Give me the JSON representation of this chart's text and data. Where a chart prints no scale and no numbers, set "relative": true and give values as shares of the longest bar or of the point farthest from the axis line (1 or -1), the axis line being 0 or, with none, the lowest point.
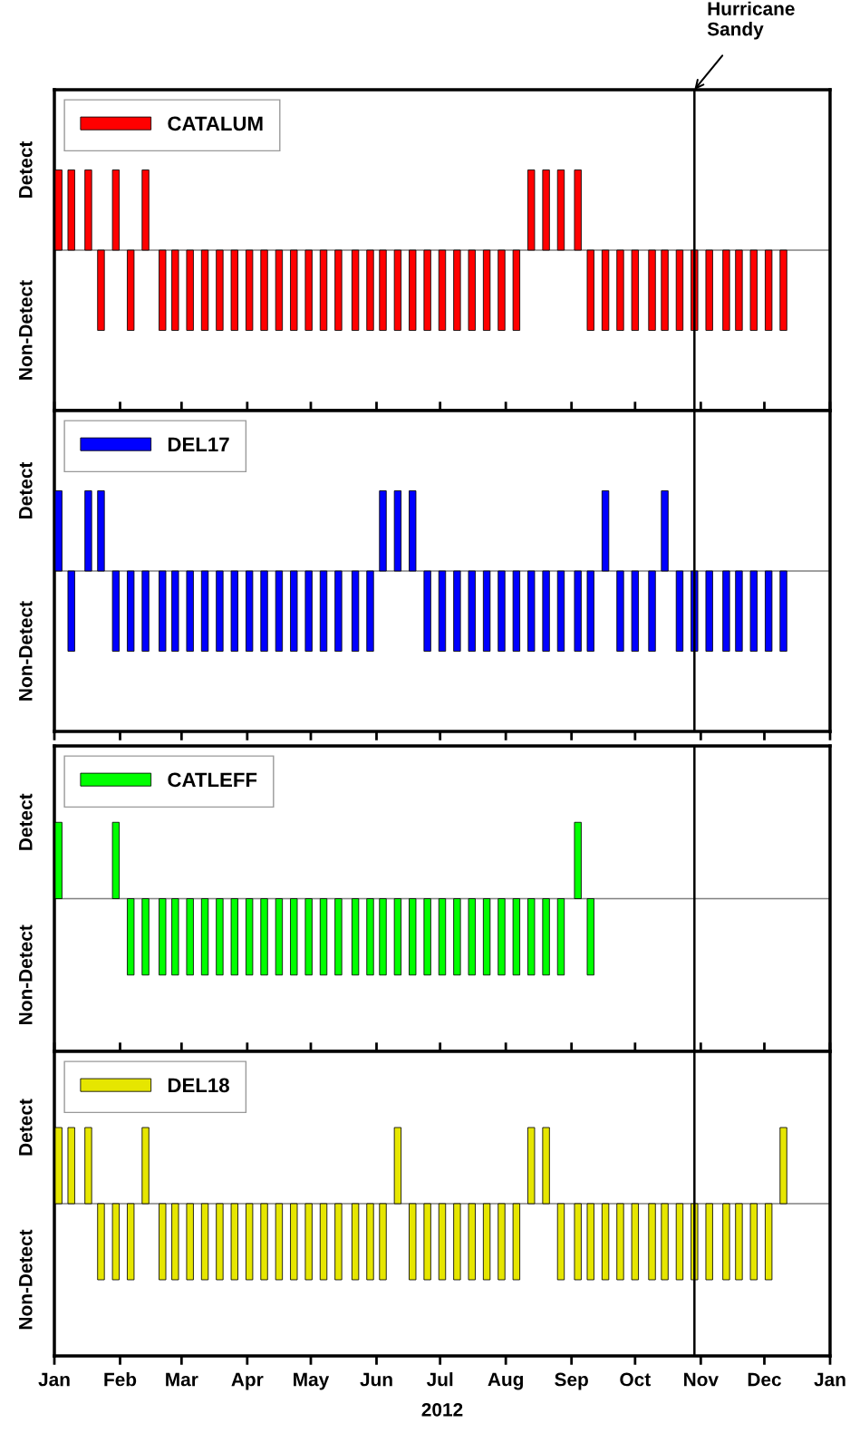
{
  "chart_data": [
    {
      "type": "bar",
      "x": [
        "2012-01-03",
        "2012-01-09",
        "2012-01-17",
        "2012-01-23",
        "2012-01-30",
        "2012-02-06",
        "2012-02-13",
        "2012-02-21",
        "2012-02-27",
        "2012-03-05",
        "2012-03-12",
        "2012-03-19",
        "2012-03-26",
        "2012-04-02",
        "2012-04-09",
        "2012-04-16",
        "2012-04-23",
        "2012-04-30",
        "2012-05-07",
        "2012-05-14",
        "2012-05-22",
        "2012-05-29",
        "2012-06-04",
        "2012-06-11",
        "2012-06-18",
        "2012-06-25",
        "2012-07-02",
        "2012-07-09",
        "2012-07-16",
        "2012-07-23",
        "2012-07-30",
        "2012-08-06",
        "2012-08-13",
        "2012-08-20",
        "2012-08-27",
        "2012-09-04",
        "2012-09-10",
        "2012-09-17",
        "2012-09-24",
        "2012-10-01",
        "2012-10-09",
        "2012-10-15",
        "2012-10-22",
        "2012-10-29",
        "2012-11-05",
        "2012-11-13",
        "2012-11-19",
        "2012-11-26",
        "2012-12-03",
        "2012-12-10"
      ],
      "series": [
        {
          "name": "CATALUM",
          "color": "#ff0000",
          "values": [
            1,
            1,
            1,
            -1,
            1,
            -1,
            1,
            -1,
            -1,
            -1,
            -1,
            -1,
            -1,
            -1,
            -1,
            -1,
            -1,
            -1,
            -1,
            -1,
            -1,
            -1,
            -1,
            -1,
            -1,
            -1,
            -1,
            -1,
            -1,
            -1,
            -1,
            -1,
            1,
            1,
            1,
            1,
            -1,
            -1,
            -1,
            -1,
            -1,
            -1,
            -1,
            -1,
            -1,
            -1,
            -1,
            -1,
            -1,
            -1
          ]
        }
      ],
      "xlim": [
        "2012-01-01",
        "2013-01-01"
      ],
      "relative": true,
      "annotations": [
        "Detect",
        "Non-Detect"
      ],
      "xticks": [
        {
          "value": "2012-01-01",
          "label": null
        },
        {
          "value": "2012-02-01",
          "label": null
        },
        {
          "value": "2012-03-01",
          "label": null
        },
        {
          "value": "2012-04-01",
          "label": null
        },
        {
          "value": "2012-05-01",
          "label": null
        },
        {
          "value": "2012-06-01",
          "label": null
        },
        {
          "value": "2012-07-01",
          "label": null
        },
        {
          "value": "2012-08-01",
          "label": null
        },
        {
          "value": "2012-09-01",
          "label": null
        },
        {
          "value": "2012-10-01",
          "label": null
        },
        {
          "value": "2012-11-01",
          "label": null
        },
        {
          "value": "2012-12-01",
          "label": null
        },
        {
          "value": "2013-01-01",
          "label": null
        }
      ],
      "tick_labels": false,
      "legend": "top left",
      "ref_lines": [
        {
          "axis": "y",
          "value": 0,
          "color": "#808080"
        },
        {
          "axis": "x",
          "value": "2012-10-29",
          "label": "Hurricane\nSandy",
          "color": "#000000"
        }
      ]
    },
    {
      "type": "bar",
      "x": [
        "2012-01-03",
        "2012-01-09",
        "2012-01-17",
        "2012-01-23",
        "2012-01-30",
        "2012-02-06",
        "2012-02-13",
        "2012-02-21",
        "2012-02-27",
        "2012-03-05",
        "2012-03-12",
        "2012-03-19",
        "2012-03-26",
        "2012-04-02",
        "2012-04-09",
        "2012-04-16",
        "2012-04-23",
        "2012-04-30",
        "2012-05-07",
        "2012-05-14",
        "2012-05-22",
        "2012-05-29",
        "2012-06-04",
        "2012-06-11",
        "2012-06-18",
        "2012-06-25",
        "2012-07-02",
        "2012-07-09",
        "2012-07-16",
        "2012-07-23",
        "2012-07-30",
        "2012-08-06",
        "2012-08-13",
        "2012-08-20",
        "2012-08-27",
        "2012-09-04",
        "2012-09-10",
        "2012-09-17",
        "2012-09-24",
        "2012-10-01",
        "2012-10-09",
        "2012-10-15",
        "2012-10-22",
        "2012-10-29",
        "2012-11-05",
        "2012-11-13",
        "2012-11-19",
        "2012-11-26",
        "2012-12-03",
        "2012-12-10"
      ],
      "series": [
        {
          "name": "DEL17",
          "color": "#0000ff",
          "values": [
            1,
            -1,
            1,
            1,
            -1,
            -1,
            -1,
            -1,
            -1,
            -1,
            -1,
            -1,
            -1,
            -1,
            -1,
            -1,
            -1,
            -1,
            -1,
            -1,
            -1,
            -1,
            1,
            1,
            1,
            -1,
            -1,
            -1,
            -1,
            -1,
            -1,
            -1,
            -1,
            -1,
            -1,
            -1,
            -1,
            1,
            -1,
            -1,
            -1,
            1,
            -1,
            -1,
            -1,
            -1,
            -1,
            -1,
            -1,
            -1
          ]
        }
      ],
      "xlim": [
        "2012-01-01",
        "2013-01-01"
      ],
      "relative": true,
      "annotations": [
        "Detect",
        "Non-Detect"
      ],
      "xticks": [
        {
          "value": "2012-01-01",
          "label": null
        },
        {
          "value": "2012-02-01",
          "label": null
        },
        {
          "value": "2012-03-01",
          "label": null
        },
        {
          "value": "2012-04-01",
          "label": null
        },
        {
          "value": "2012-05-01",
          "label": null
        },
        {
          "value": "2012-06-01",
          "label": null
        },
        {
          "value": "2012-07-01",
          "label": null
        },
        {
          "value": "2012-08-01",
          "label": null
        },
        {
          "value": "2012-09-01",
          "label": null
        },
        {
          "value": "2012-10-01",
          "label": null
        },
        {
          "value": "2012-11-01",
          "label": null
        },
        {
          "value": "2012-12-01",
          "label": null
        },
        {
          "value": "2013-01-01",
          "label": null
        }
      ],
      "tick_labels": false,
      "legend": "top left",
      "ref_lines": [
        {
          "axis": "y",
          "value": 0,
          "color": "#808080"
        },
        {
          "axis": "x",
          "value": "2012-10-29",
          "color": "#000000"
        }
      ]
    },
    {
      "type": "bar",
      "x": [
        "2012-01-03",
        "2012-01-30",
        "2012-02-06",
        "2012-02-13",
        "2012-02-21",
        "2012-02-27",
        "2012-03-05",
        "2012-03-12",
        "2012-03-19",
        "2012-03-26",
        "2012-04-02",
        "2012-04-09",
        "2012-04-16",
        "2012-04-23",
        "2012-04-30",
        "2012-05-07",
        "2012-05-14",
        "2012-05-22",
        "2012-05-29",
        "2012-06-04",
        "2012-06-11",
        "2012-06-18",
        "2012-06-25",
        "2012-07-02",
        "2012-07-09",
        "2012-07-16",
        "2012-07-23",
        "2012-07-30",
        "2012-08-06",
        "2012-08-13",
        "2012-08-20",
        "2012-08-27",
        "2012-09-04",
        "2012-09-10"
      ],
      "series": [
        {
          "name": "CATLEFF",
          "color": "#00ff00",
          "values": [
            1,
            1,
            -1,
            -1,
            -1,
            -1,
            -1,
            -1,
            -1,
            -1,
            -1,
            -1,
            -1,
            -1,
            -1,
            -1,
            -1,
            -1,
            -1,
            -1,
            -1,
            -1,
            -1,
            -1,
            -1,
            -1,
            -1,
            -1,
            -1,
            -1,
            -1,
            -1,
            1,
            -1
          ]
        }
      ],
      "xlim": [
        "2012-01-01",
        "2013-01-01"
      ],
      "relative": true,
      "annotations": [
        "Detect",
        "Non-Detect"
      ],
      "xticks": [
        {
          "value": "2012-01-01",
          "label": null
        },
        {
          "value": "2012-02-01",
          "label": null
        },
        {
          "value": "2012-03-01",
          "label": null
        },
        {
          "value": "2012-04-01",
          "label": null
        },
        {
          "value": "2012-05-01",
          "label": null
        },
        {
          "value": "2012-06-01",
          "label": null
        },
        {
          "value": "2012-07-01",
          "label": null
        },
        {
          "value": "2012-08-01",
          "label": null
        },
        {
          "value": "2012-09-01",
          "label": null
        },
        {
          "value": "2012-10-01",
          "label": null
        },
        {
          "value": "2012-11-01",
          "label": null
        },
        {
          "value": "2012-12-01",
          "label": null
        },
        {
          "value": "2013-01-01",
          "label": null
        }
      ],
      "tick_labels": false,
      "legend": "top left",
      "ref_lines": [
        {
          "axis": "y",
          "value": 0,
          "color": "#808080"
        },
        {
          "axis": "x",
          "value": "2012-10-29",
          "color": "#000000"
        }
      ]
    },
    {
      "type": "bar",
      "x": [
        "2012-01-03",
        "2012-01-09",
        "2012-01-17",
        "2012-01-23",
        "2012-01-30",
        "2012-02-06",
        "2012-02-13",
        "2012-02-21",
        "2012-02-27",
        "2012-03-05",
        "2012-03-12",
        "2012-03-19",
        "2012-03-26",
        "2012-04-02",
        "2012-04-09",
        "2012-04-16",
        "2012-04-23",
        "2012-04-30",
        "2012-05-07",
        "2012-05-14",
        "2012-05-22",
        "2012-05-29",
        "2012-06-04",
        "2012-06-11",
        "2012-06-18",
        "2012-06-25",
        "2012-07-02",
        "2012-07-09",
        "2012-07-16",
        "2012-07-23",
        "2012-07-30",
        "2012-08-06",
        "2012-08-13",
        "2012-08-20",
        "2012-08-27",
        "2012-09-04",
        "2012-09-10",
        "2012-09-17",
        "2012-09-24",
        "2012-10-01",
        "2012-10-09",
        "2012-10-15",
        "2012-10-22",
        "2012-10-29",
        "2012-11-05",
        "2012-11-13",
        "2012-11-19",
        "2012-11-26",
        "2012-12-03",
        "2012-12-10"
      ],
      "series": [
        {
          "name": "DEL18",
          "color": "#e6e600",
          "values": [
            1,
            1,
            1,
            -1,
            -1,
            -1,
            1,
            -1,
            -1,
            -1,
            -1,
            -1,
            -1,
            -1,
            -1,
            -1,
            -1,
            -1,
            -1,
            -1,
            -1,
            -1,
            -1,
            1,
            -1,
            -1,
            -1,
            -1,
            -1,
            -1,
            -1,
            -1,
            1,
            1,
            -1,
            -1,
            -1,
            -1,
            -1,
            -1,
            -1,
            -1,
            -1,
            -1,
            -1,
            -1,
            -1,
            -1,
            -1,
            1
          ]
        }
      ],
      "xlim": [
        "2012-01-01",
        "2013-01-01"
      ],
      "relative": true,
      "annotations": [
        "Detect",
        "Non-Detect"
      ],
      "tick_labels": "x",
      "xticks": [
        {
          "value": "2012-01-01",
          "label": "Jan"
        },
        {
          "value": "2012-02-01",
          "label": "Feb"
        },
        {
          "value": "2012-03-01",
          "label": "Mar"
        },
        {
          "value": "2012-04-01",
          "label": "Apr"
        },
        {
          "value": "2012-05-01",
          "label": "May"
        },
        {
          "value": "2012-06-01",
          "label": "Jun"
        },
        {
          "value": "2012-07-01",
          "label": "Jul"
        },
        {
          "value": "2012-08-01",
          "label": "Aug"
        },
        {
          "value": "2012-09-01",
          "label": "Sep"
        },
        {
          "value": "2012-10-01",
          "label": "Oct"
        },
        {
          "value": "2012-11-01",
          "label": "Nov"
        },
        {
          "value": "2012-12-01",
          "label": "Dec"
        },
        {
          "value": "2013-01-01",
          "label": "Jan"
        }
      ],
      "xlabel": "2012",
      "legend": "top left",
      "ref_lines": [
        {
          "axis": "y",
          "value": 0,
          "color": "#808080"
        },
        {
          "axis": "x",
          "value": "2012-10-29",
          "color": "#000000"
        }
      ]
    }
  ]
}
